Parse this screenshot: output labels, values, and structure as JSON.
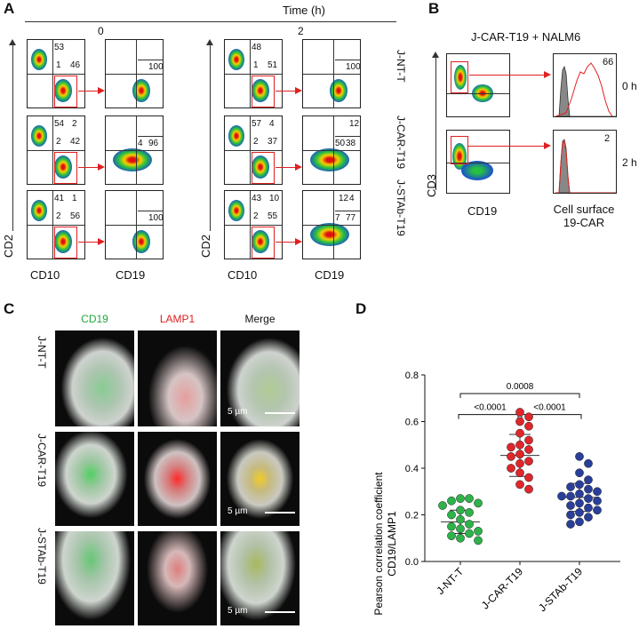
{
  "panel_labels": {
    "a": "A",
    "b": "B",
    "c": "C",
    "d": "D"
  },
  "panel_a": {
    "time_label": "Time (h)",
    "timepoints": [
      "0",
      "2"
    ],
    "row_labels": [
      "J-NT-T",
      "J-CAR-T19",
      "J-STAb-T19"
    ],
    "y_axis_label": "CD2",
    "x_labels": {
      "cd10": "CD10",
      "cd19": "CD19"
    },
    "gates_t0": [
      {
        "left": [
          {
            "tl": "53",
            "tr": "",
            "bl": "1",
            "br": "46"
          }
        ],
        "right": {
          "tl": "",
          "tr": "",
          "bl": "",
          "br": "100"
        }
      },
      {
        "left": [
          {
            "tl": "54",
            "tr": "2",
            "bl": "2",
            "br": "42"
          }
        ],
        "right": {
          "tl": "",
          "tr": "",
          "bl": "4",
          "br": "96"
        }
      },
      {
        "left": [
          {
            "tl": "41",
            "tr": "1",
            "bl": "2",
            "br": "56"
          }
        ],
        "right": {
          "tl": "",
          "tr": "",
          "bl": "",
          "br": "100"
        }
      }
    ],
    "gates_t2": [
      {
        "left": [
          {
            "tl": "48",
            "tr": "",
            "bl": "1",
            "br": "51"
          }
        ],
        "right": {
          "tl": "",
          "tr": "",
          "bl": "",
          "br": "100"
        }
      },
      {
        "left": [
          {
            "tl": "57",
            "tr": "4",
            "bl": "2",
            "br": "37"
          }
        ],
        "right": {
          "tl": "",
          "tr": "12",
          "bl": "50",
          "br": "38"
        }
      },
      {
        "left": [
          {
            "tl": "43",
            "tr": "10",
            "bl": "2",
            "br": "55"
          }
        ],
        "right": {
          "tl": "",
          "tr": "4",
          "bl": "7",
          "br": "77",
          "tl2": "12"
        }
      }
    ]
  },
  "panel_b": {
    "title": "J-CAR-T19 + NALM6",
    "y_axis_label": "CD3",
    "x_label": "CD19",
    "hist_label_line1": "Cell surface",
    "hist_label_line2": "19-CAR",
    "rows": [
      {
        "time": "0 h",
        "value": "66"
      },
      {
        "time": "2 h",
        "value": "2"
      }
    ]
  },
  "panel_c": {
    "columns": [
      "CD19",
      "LAMP1",
      "Merge"
    ],
    "column_colors": [
      "#1fa83a",
      "#e02020",
      "#111111"
    ],
    "rows": [
      "J-NT-T",
      "J-CAR-T19",
      "J-STAb-T19"
    ],
    "scale_label": "5 µm"
  },
  "chart_data": {
    "type": "scatter",
    "title": "",
    "ylabel_line1": "Pearson correlation coefficient",
    "ylabel_line2": "CD19/LAMP1",
    "categories": [
      "J-NT-T",
      "J-CAR-T19",
      "J-STAb-T19"
    ],
    "ylim": [
      0.0,
      0.8
    ],
    "yticks": [
      "0.0",
      "0.2",
      "0.4",
      "0.6",
      "0.8"
    ],
    "series": [
      {
        "name": "J-NT-T",
        "color": "#2db34a",
        "mean": 0.17,
        "sd": 0.05,
        "values": [
          0.27,
          0.27,
          0.26,
          0.25,
          0.24,
          0.22,
          0.21,
          0.2,
          0.18,
          0.16,
          0.15,
          0.14,
          0.13,
          0.12,
          0.11,
          0.1,
          0.09
        ]
      },
      {
        "name": "J-CAR-T19",
        "color": "#e0262b",
        "mean": 0.455,
        "sd": 0.09,
        "values": [
          0.64,
          0.62,
          0.6,
          0.58,
          0.55,
          0.52,
          0.5,
          0.49,
          0.48,
          0.46,
          0.45,
          0.43,
          0.42,
          0.4,
          0.38,
          0.36,
          0.33,
          0.31
        ]
      },
      {
        "name": "J-STAb-T19",
        "color": "#2a3f9a",
        "mean": 0.275,
        "sd": 0.06,
        "values": [
          0.45,
          0.42,
          0.38,
          0.35,
          0.33,
          0.32,
          0.31,
          0.3,
          0.29,
          0.28,
          0.28,
          0.27,
          0.26,
          0.25,
          0.24,
          0.23,
          0.22,
          0.21,
          0.2,
          0.19,
          0.17,
          0.16
        ]
      }
    ],
    "comparisons": [
      {
        "from": 0,
        "to": 2,
        "label": "0.0008"
      },
      {
        "from": 0,
        "to": 1,
        "label": "<0.0001"
      },
      {
        "from": 1,
        "to": 2,
        "label": "<0.0001"
      }
    ]
  }
}
